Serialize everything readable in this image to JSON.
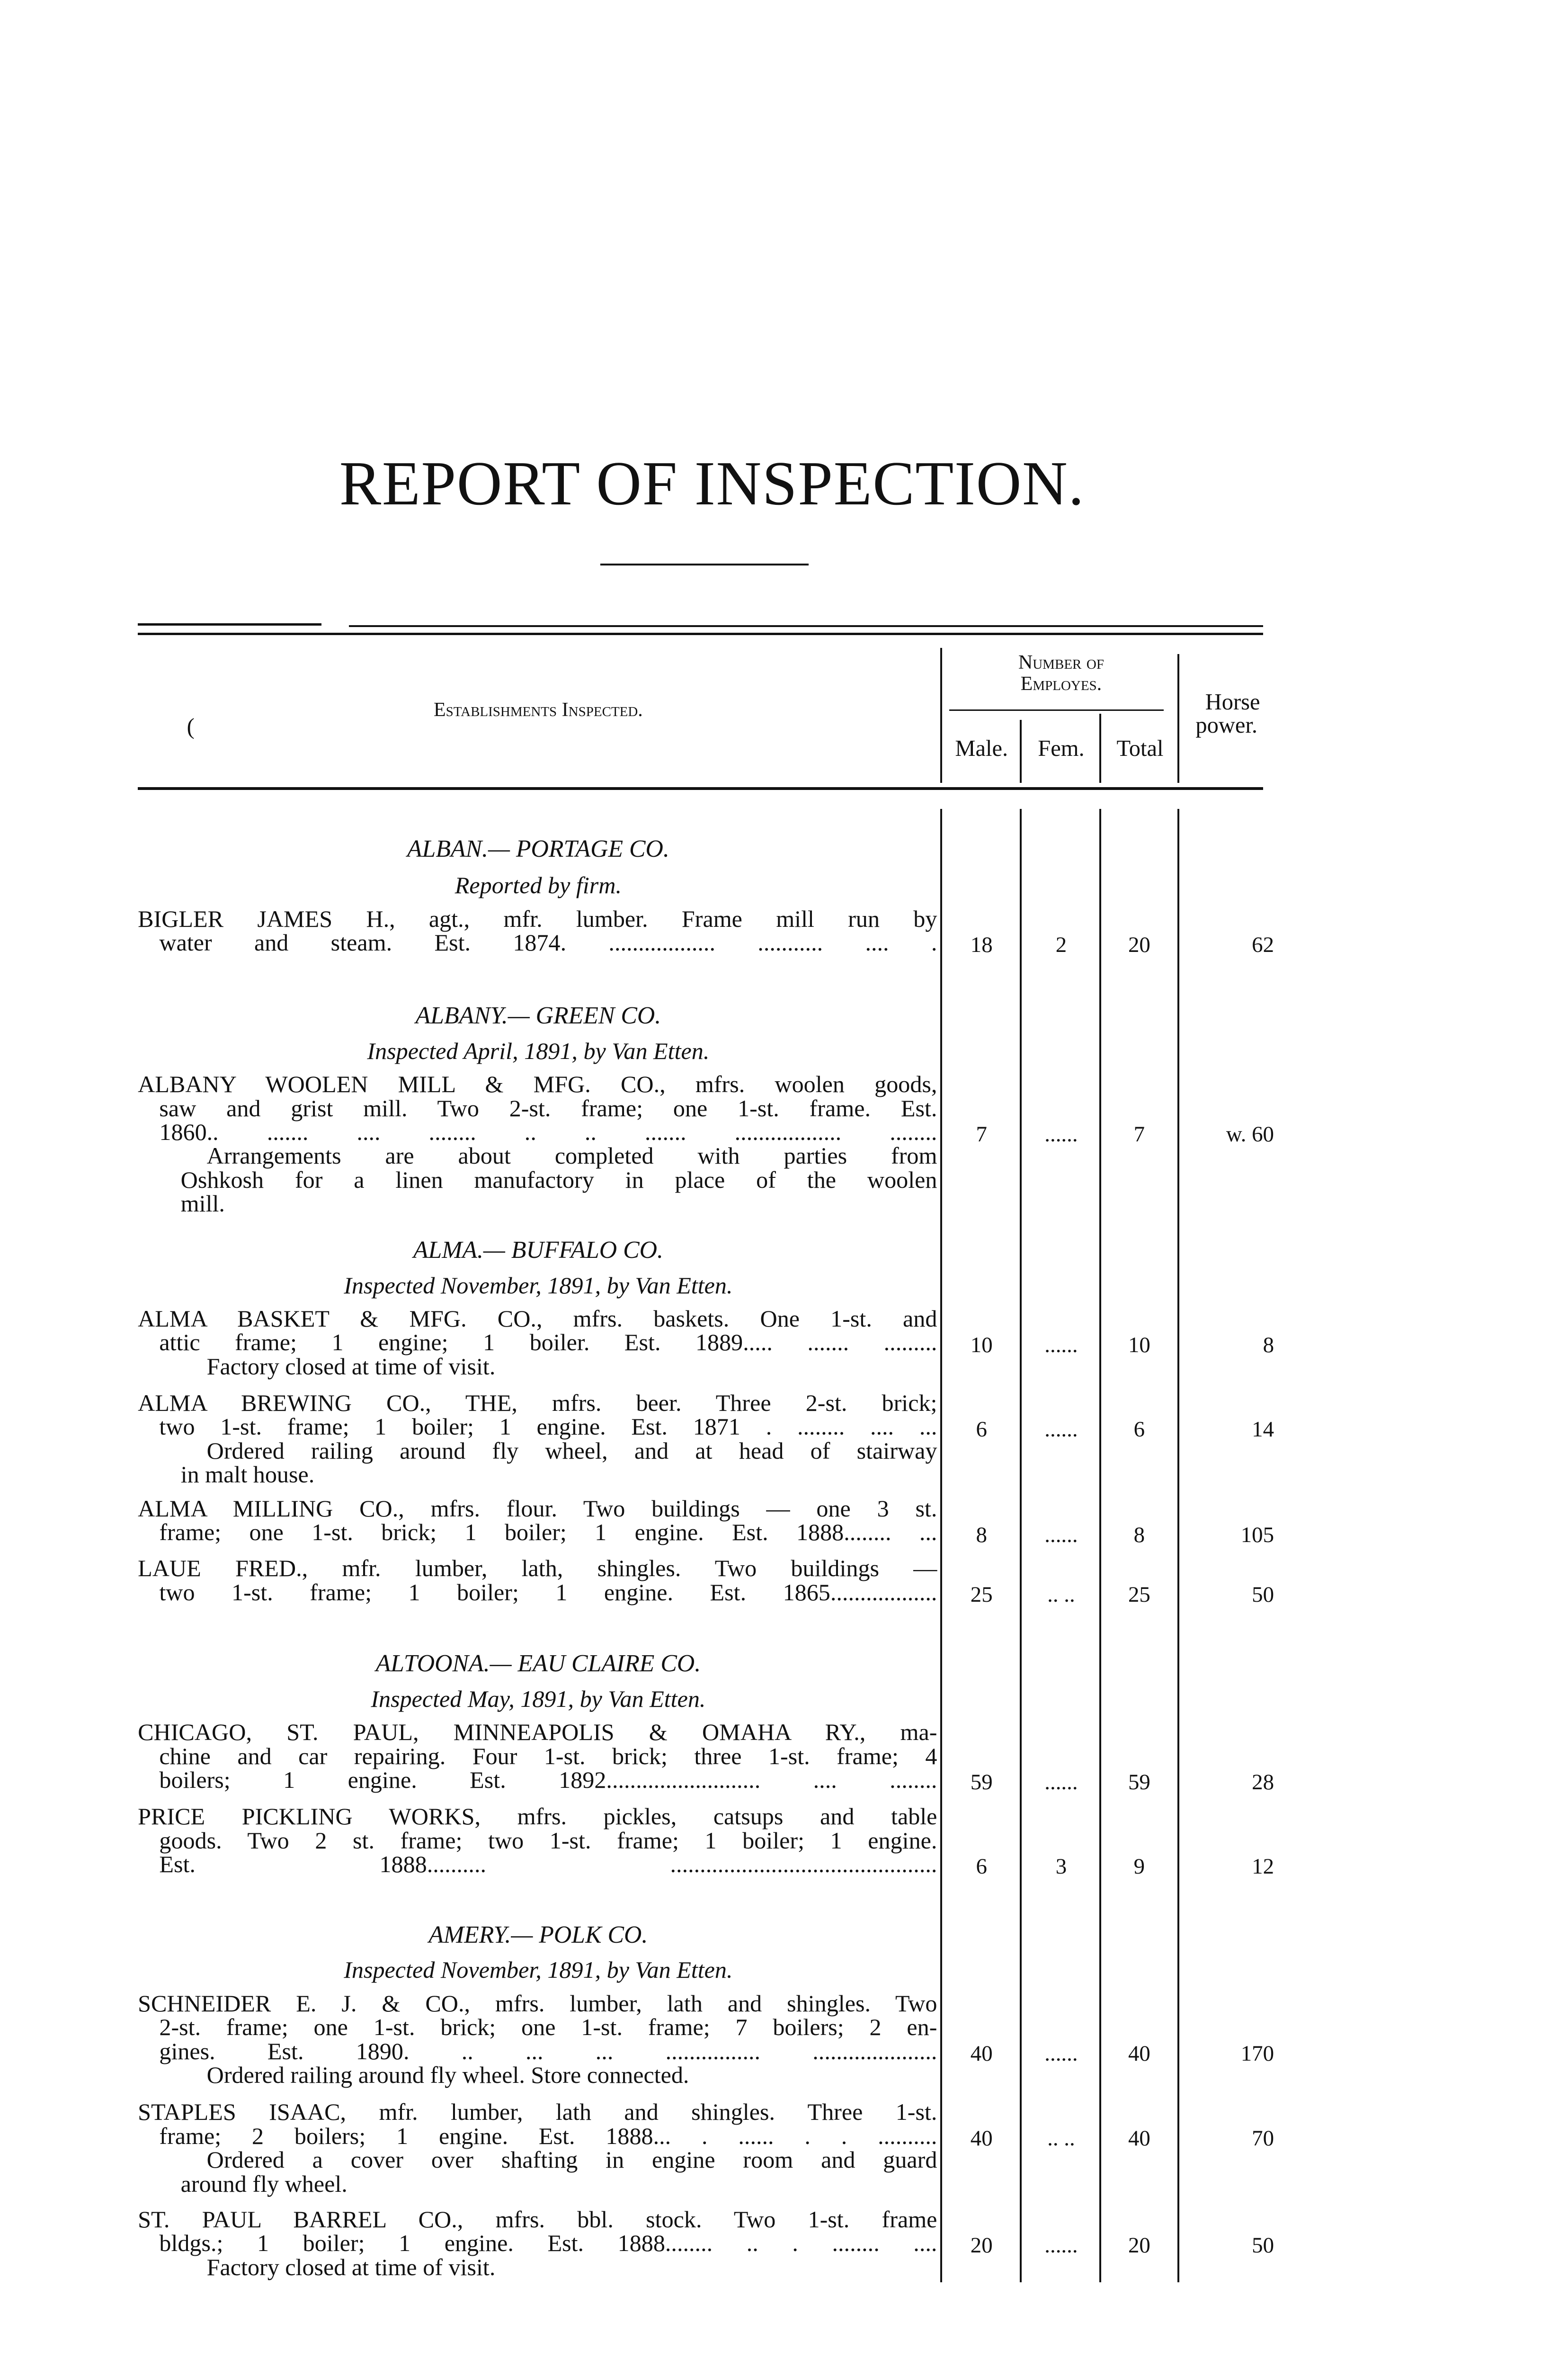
{
  "title": "REPORT OF INSPECTION.",
  "table_header": {
    "establishments": "Establishments Inspected.",
    "number_of": "Number of",
    "employes": "Employes.",
    "male": "Male.",
    "fem": "Fem.",
    "total": "Total",
    "horse": "Horse",
    "power": "power.",
    "stray_mark": "("
  },
  "sections": [
    {
      "heading": "ALBAN.— PORTAGE CO.",
      "subheading": "Reported by firm.",
      "entries": [
        {
          "lines": [
            "BIGLER JAMES H., agt., mfr. lumber.  Frame mill run by",
            "water and steam.  Est. 1874. .................. ........... .... ."
          ],
          "notes": [],
          "male": "18",
          "fem": "2",
          "total": "20",
          "hp": "62"
        }
      ]
    },
    {
      "heading": "ALBANY.— GREEN CO.",
      "subheading": "Inspected April, 1891, by Van Etten.",
      "entries": [
        {
          "lines": [
            "ALBANY WOOLEN MILL & MFG. CO., mfrs. woolen goods,",
            "saw and grist mill.  Two 2-st. frame; one 1-st. frame.  Est.",
            "1860.. ....... .... ........ .. .. ....... .................. ........"
          ],
          "notes": [
            "Arrangements are about completed with parties from",
            "Oshkosh for a linen manufactory in place of the woolen",
            "mill."
          ],
          "male": "7",
          "fem": "......",
          "total": "7",
          "hp": "w. 60"
        }
      ]
    },
    {
      "heading": "ALMA.— BUFFALO CO.",
      "subheading": "Inspected November, 1891, by Van Etten.",
      "entries": [
        {
          "lines": [
            "ALMA BASKET & MFG. CO., mfrs. baskets.  One 1-st. and",
            "attic frame; 1 engine; 1 boiler.  Est. 1889..... ....... ........."
          ],
          "notes": [
            "Factory closed at time of visit."
          ],
          "male": "10",
          "fem": "......",
          "total": "10",
          "hp": "8"
        },
        {
          "lines": [
            "ALMA BREWING CO., THE, mfrs. beer.  Three 2-st. brick;",
            "two 1-st. frame; 1 boiler; 1 engine.  Est. 1871 . ........ .... ..."
          ],
          "notes": [
            "Ordered railing around fly wheel, and at head of stairway",
            "in malt house."
          ],
          "male": "6",
          "fem": "......",
          "total": "6",
          "hp": "14"
        },
        {
          "lines": [
            "ALMA MILLING CO., mfrs. flour.  Two buildings — one 3 st.",
            "frame; one 1-st. brick; 1 boiler; 1 engine.  Est. 1888........ ..."
          ],
          "notes": [],
          "male": "8",
          "fem": "......",
          "total": "8",
          "hp": "105"
        },
        {
          "lines": [
            "LAUE FRED., mfr. lumber, lath, shingles.  Two buildings —",
            "two 1-st. frame; 1 boiler; 1 engine.  Est. 1865.................."
          ],
          "notes": [],
          "male": "25",
          "fem": ".. ..",
          "total": "25",
          "hp": "50"
        }
      ]
    },
    {
      "heading": "ALTOONA.— EAU CLAIRE CO.",
      "subheading": "Inspected May, 1891, by Van Etten.",
      "entries": [
        {
          "lines": [
            "CHICAGO, ST. PAUL, MINNEAPOLIS & OMAHA RY., ma-",
            "chine and car repairing.  Four 1-st. brick; three 1-st. frame; 4",
            "boilers; 1 engine.  Est. 1892.......................... .... ........"
          ],
          "notes": [],
          "male": "59",
          "fem": "......",
          "total": "59",
          "hp": "28"
        },
        {
          "lines": [
            "PRICE PICKLING WORKS, mfrs. pickles, catsups and table",
            "goods.  Two 2 st. frame; two 1-st. frame; 1 boiler; 1 engine.",
            "Est. 1888.......... ............................................."
          ],
          "notes": [],
          "male": "6",
          "fem": "3",
          "total": "9",
          "hp": "12"
        }
      ]
    },
    {
      "heading": "AMERY.— POLK CO.",
      "subheading": "Inspected November, 1891, by Van Etten.",
      "entries": [
        {
          "lines": [
            "SCHNEIDER E. J. & CO., mfrs. lumber, lath and shingles.  Two",
            "2-st. frame; one 1-st. brick; one 1-st. frame; 7 boilers; 2 en-",
            "gines.  Est. 1890. .. ... ... ................ ....................."
          ],
          "notes": [
            "Ordered railing around fly wheel.  Store connected."
          ],
          "male": "40",
          "fem": "......",
          "total": "40",
          "hp": "170"
        },
        {
          "lines": [
            "STAPLES ISAAC, mfr. lumber, lath and shingles.  Three 1-st.",
            "frame; 2 boilers; 1 engine.  Est. 1888... . ...... . . .........."
          ],
          "notes": [
            "Ordered a cover over shafting in engine room and guard",
            "around fly wheel."
          ],
          "male": "40",
          "fem": ".. ..",
          "total": "40",
          "hp": "70"
        },
        {
          "lines": [
            "ST. PAUL BARREL CO., mfrs. bbl. stock.  Two 1-st. frame",
            "bldgs.; 1 boiler; 1 engine.  Est. 1888........ .. . ........ ...."
          ],
          "notes": [
            "Factory closed at time of visit."
          ],
          "male": "20",
          "fem": "......",
          "total": "20",
          "hp": "50"
        }
      ]
    }
  ]
}
